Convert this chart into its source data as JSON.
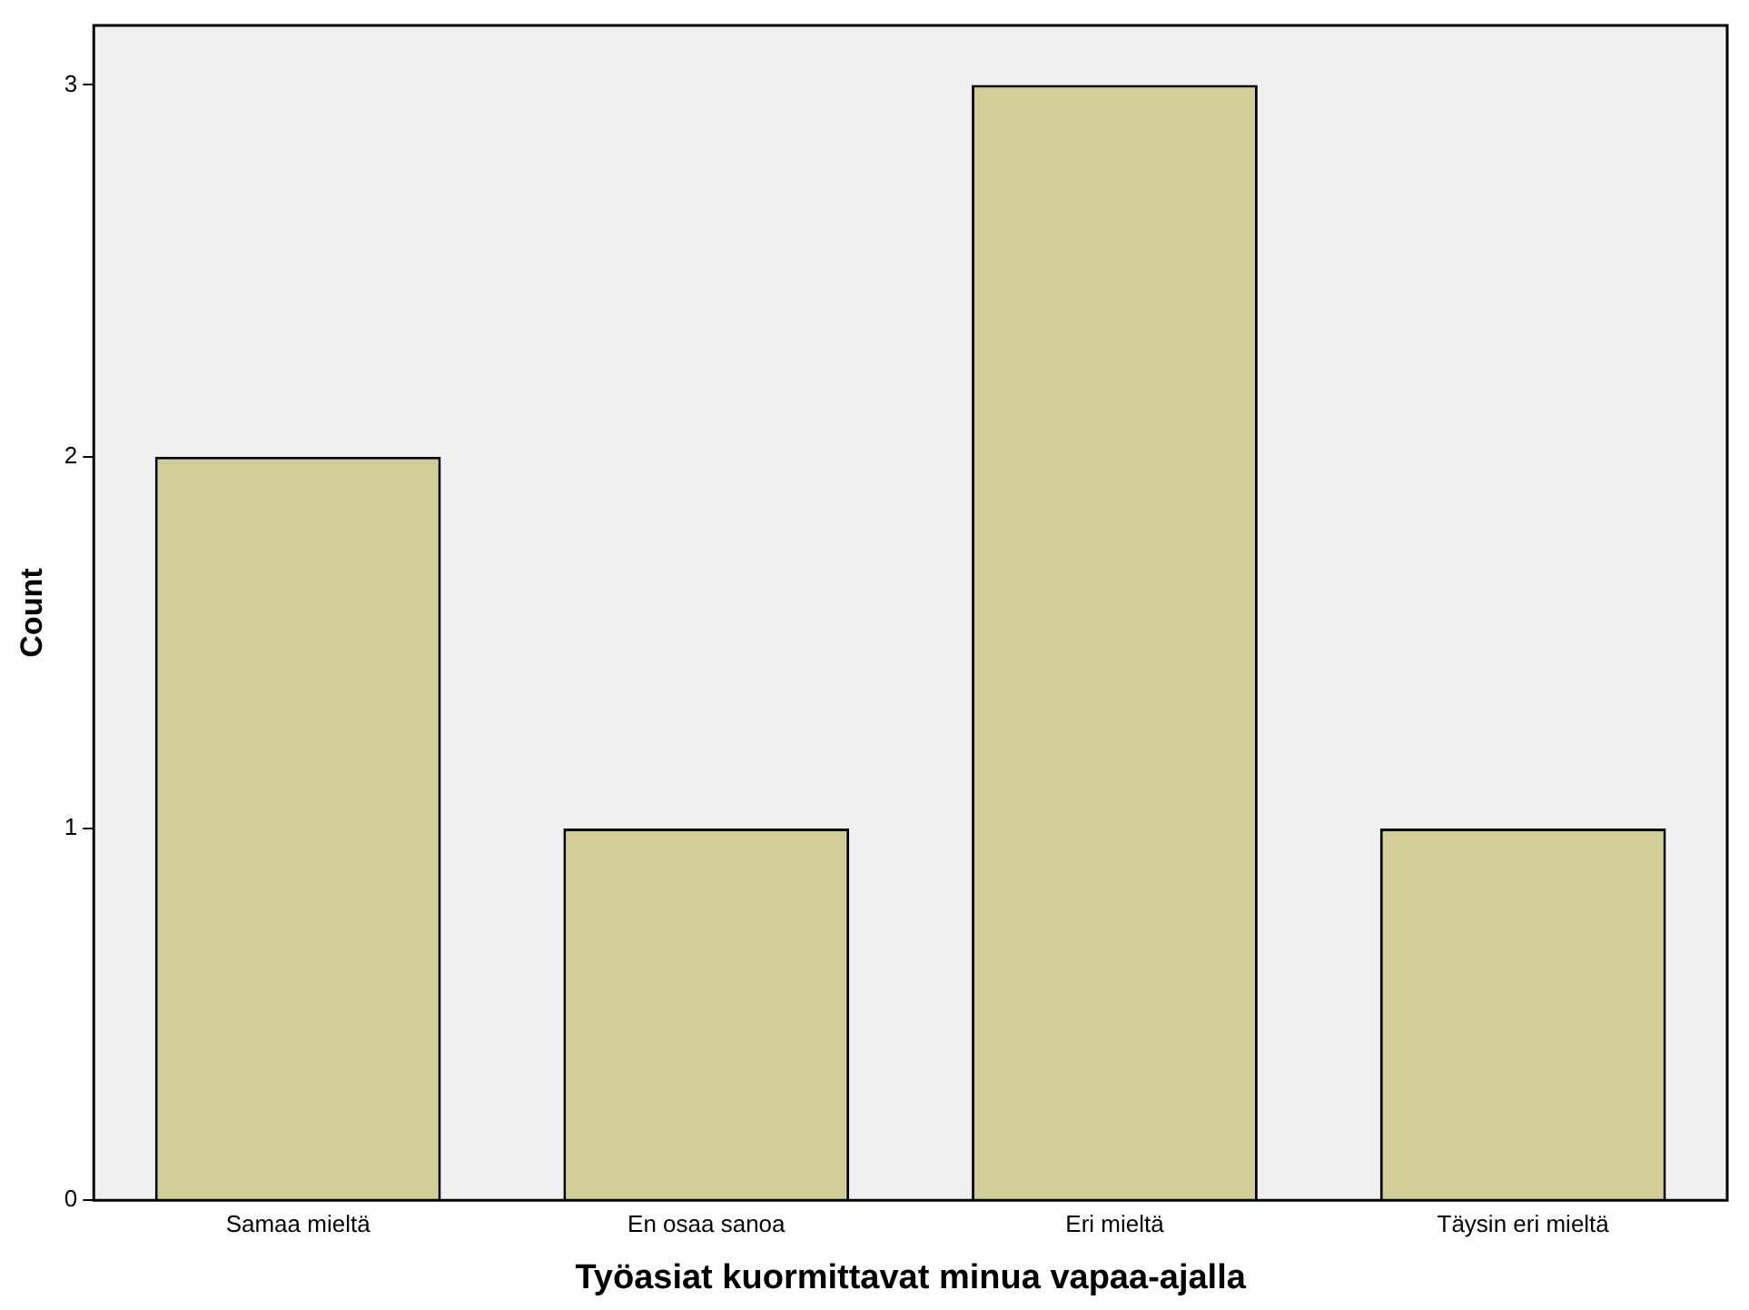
{
  "chart_data": {
    "type": "bar",
    "xlabel": "Työasiat kuormittavat minua vapaa-ajalla",
    "ylabel": "Count",
    "categories": [
      "Samaa mieltä",
      "En osaa sanoa",
      "Eri mieltä",
      "Täysin eri mieltä"
    ],
    "values": [
      2,
      1,
      3,
      1
    ],
    "color": "#d3ce98",
    "ylim": [
      0,
      3.16
    ],
    "yticks": [
      0,
      1,
      2,
      3
    ]
  }
}
